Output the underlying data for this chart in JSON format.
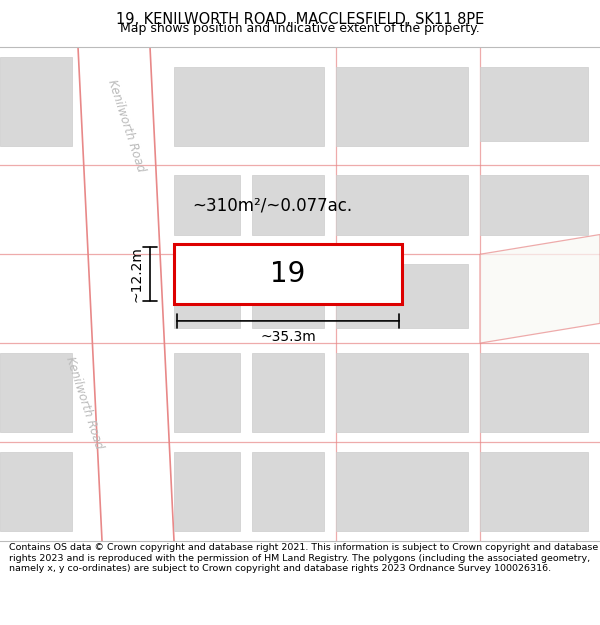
{
  "title_line1": "19, KENILWORTH ROAD, MACCLESFIELD, SK11 8PE",
  "title_line2": "Map shows position and indicative extent of the property.",
  "footer_text": "Contains OS data © Crown copyright and database right 2021. This information is subject to Crown copyright and database rights 2023 and is reproduced with the permission of HM Land Registry. The polygons (including the associated geometry, namely x, y co-ordinates) are subject to Crown copyright and database rights 2023 Ordnance Survey 100026316.",
  "map_bg": "#f8f8f5",
  "road_edge": "#e88888",
  "building_fill": "#d8d8d8",
  "building_edge": "#cccccc",
  "property_edge": "#dd0000",
  "property_label": "19",
  "area_label": "~310m²/~0.077ac.",
  "width_label": "~35.3m",
  "height_label": "~12.2m",
  "road_label": "Kenilworth Road",
  "road_label2": "Kenilworth Road"
}
